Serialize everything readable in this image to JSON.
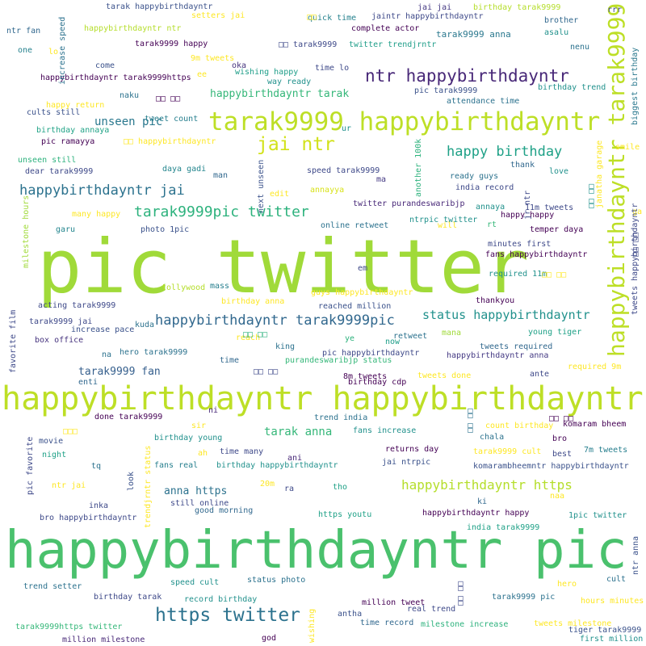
{
  "words": [
    {
      "text": "pic twitter",
      "color": "#a0da39"
    },
    {
      "text": "happybirthdayntr pic",
      "color": "#4ac16d"
    },
    {
      "text": "happybirthdayntr happybirthdayntr",
      "color": "#bddf26"
    },
    {
      "text": "tarak9999 happybirthdayntr",
      "color": "#bddf26"
    },
    {
      "text": "happybirthdayntr tarak9999",
      "color": "#bddf26"
    },
    {
      "text": "ntr happybirthdayntr",
      "color": "#482878"
    },
    {
      "text": "jai ntr",
      "color": "#d2e21b"
    },
    {
      "text": "happy birthday",
      "color": "#1fa187"
    },
    {
      "text": "happybirthdayntr jai",
      "color": "#2c728e"
    },
    {
      "text": "tarak9999pic twitter",
      "color": "#2db27d"
    },
    {
      "text": "happybirthdayntr tarak9999pic",
      "color": "#31688e"
    },
    {
      "text": "status happybirthdayntr",
      "color": "#21918c"
    },
    {
      "text": "https twitter",
      "color": "#2c728e"
    },
    {
      "text": "happybirthdayntr https",
      "color": "#b5de2b"
    },
    {
      "text": "happybirthdayntr tarak",
      "color": "#35b779"
    },
    {
      "text": "unseen pic",
      "color": "#2a788e"
    },
    {
      "text": "tarak anna",
      "color": "#35b779"
    },
    {
      "text": "tarak9999 fan",
      "color": "#355f8d"
    },
    {
      "text": "anna https",
      "color": "#2c728e"
    },
    {
      "text": "tarak9999 anna",
      "color": "#2a788e"
    },
    {
      "text": "tarak happybirthdayntr",
      "color": "#3b528b"
    },
    {
      "text": "birthday tarak9999",
      "color": "#b5de2b"
    },
    {
      "text": "jaintr happybirthdayntr",
      "color": "#3e4989"
    },
    {
      "text": "quick time",
      "color": "#26828e"
    },
    {
      "text": "setters jai",
      "color": "#fde725"
    },
    {
      "text": "jai jai",
      "color": "#443983"
    },
    {
      "text": "rrr",
      "color": "#3e4989"
    },
    {
      "text": "brother",
      "color": "#31688e"
    },
    {
      "text": "asalu",
      "color": "#21918c"
    },
    {
      "text": "complete actor",
      "color": "#440154"
    },
    {
      "text": "twitter trendjrntr",
      "color": "#1f9e89"
    },
    {
      "text": "ntr fan",
      "color": "#31688e"
    },
    {
      "text": "one",
      "color": "#26828e"
    },
    {
      "text": "lo",
      "color": "#fde725"
    },
    {
      "text": "happybirthdayntr ntr",
      "color": "#b5de2b"
    },
    {
      "text": "tarak9999 happy",
      "color": "#440154"
    },
    {
      "text": "9m tweets",
      "color": "#fde725"
    },
    {
      "text": "nenu",
      "color": "#2c728e"
    },
    {
      "text": "come",
      "color": "#3b528b"
    },
    {
      "text": "oka",
      "color": "#46337e"
    },
    {
      "text": "wishing happy",
      "color": "#1f9e89"
    },
    {
      "text": "time lo",
      "color": "#3e4989"
    },
    {
      "text": "happybirthdayntr tarak9999https",
      "color": "#440154"
    },
    {
      "text": "ee",
      "color": "#fde725"
    },
    {
      "text": "way ready",
      "color": "#21918c"
    },
    {
      "text": "pic tarak9999",
      "color": "#3b528b"
    },
    {
      "text": "birthday trend",
      "color": "#21918c"
    },
    {
      "text": "naku",
      "color": "#2c728e"
    },
    {
      "text": "happy return",
      "color": "#fde725"
    },
    {
      "text": "attendance time",
      "color": "#2c728e"
    },
    {
      "text": "cults still",
      "color": "#3b528b"
    },
    {
      "text": "tweet count",
      "color": "#277f8e"
    },
    {
      "text": "birthday annaya",
      "color": "#20a386"
    },
    {
      "text": "pic ramayya",
      "color": "#440154"
    },
    {
      "text": "ur",
      "color": "#21918c"
    },
    {
      "text": "smile",
      "color": "#fde725"
    },
    {
      "text": "unseen still",
      "color": "#2db27d"
    },
    {
      "text": "daya gadi",
      "color": "#24868e"
    },
    {
      "text": "speed tarak9999",
      "color": "#3e4989"
    },
    {
      "text": "thank",
      "color": "#31688e"
    },
    {
      "text": "dear tarak9999",
      "color": "#3e4989"
    },
    {
      "text": "man",
      "color": "#31688e"
    },
    {
      "text": "love",
      "color": "#21918c"
    },
    {
      "text": "ready guys",
      "color": "#2c728e"
    },
    {
      "text": "edit",
      "color": "#fde725"
    },
    {
      "text": "annayya",
      "color": "#d8e219"
    },
    {
      "text": "india record",
      "color": "#3e4989"
    },
    {
      "text": "ma",
      "color": "#443983"
    },
    {
      "text": "twitter purandeswaribjp",
      "color": "#482878"
    },
    {
      "text": "11m tweets",
      "color": "#3e4989"
    },
    {
      "text": "many happy",
      "color": "#fde725"
    },
    {
      "text": "annaya",
      "color": "#21918c"
    },
    {
      "text": "happy happy",
      "color": "#440154"
    },
    {
      "text": "ga",
      "color": "#fde725"
    },
    {
      "text": "garu",
      "color": "#24868e"
    },
    {
      "text": "photo 1pic",
      "color": "#3b528b"
    },
    {
      "text": "online retweet",
      "color": "#2c728e"
    },
    {
      "text": "will",
      "color": "#fde725"
    },
    {
      "text": "ntrpic twitter",
      "color": "#21918c"
    },
    {
      "text": "rt",
      "color": "#35b779"
    },
    {
      "text": "temper daya",
      "color": "#440154"
    },
    {
      "text": "minutes first",
      "color": "#3e4989"
    },
    {
      "text": "fans happybirthdayntr",
      "color": "#440154"
    },
    {
      "text": "em",
      "color": "#3e4989"
    },
    {
      "text": "required 11m",
      "color": "#21918c"
    },
    {
      "text": "tollywood",
      "color": "#b5de2b"
    },
    {
      "text": "mass",
      "color": "#277f8e"
    },
    {
      "text": "guys happybirthdayntr",
      "color": "#fde725"
    },
    {
      "text": "thankyou",
      "color": "#440154"
    },
    {
      "text": "acting tarak9999",
      "color": "#3e4989"
    },
    {
      "text": "birthday anna",
      "color": "#fde725"
    },
    {
      "text": "reached million",
      "color": "#3b528b"
    },
    {
      "text": "tarak9999 jai",
      "color": "#3e4989"
    },
    {
      "text": "increase pace",
      "color": "#3b528b"
    },
    {
      "text": "kuda",
      "color": "#2c728e"
    },
    {
      "text": "box office",
      "color": "#46337e"
    },
    {
      "text": "reach",
      "color": "#fde725"
    },
    {
      "text": "ye",
      "color": "#2db27d"
    },
    {
      "text": "retweet",
      "color": "#2c728e"
    },
    {
      "text": "mana",
      "color": "#a0da39"
    },
    {
      "text": "young tiger",
      "color": "#1fa187"
    },
    {
      "text": "king",
      "color": "#2c728e"
    },
    {
      "text": "now",
      "color": "#1f9e89"
    },
    {
      "text": "tweets required",
      "color": "#31688e"
    },
    {
      "text": "na",
      "color": "#2c728e"
    },
    {
      "text": "hero tarak9999",
      "color": "#2c728e"
    },
    {
      "text": "pic happybirthdayntr",
      "color": "#3e4989"
    },
    {
      "text": "happybirthdayntr anna",
      "color": "#443983"
    },
    {
      "text": "time",
      "color": "#31688e"
    },
    {
      "text": "purandeswaribjp status",
      "color": "#35b779"
    },
    {
      "text": "required 9m",
      "color": "#fde725"
    },
    {
      "text": "8m tweets",
      "color": "#440154"
    },
    {
      "text": "tweets done",
      "color": "#fde725"
    },
    {
      "text": "ante",
      "color": "#3e4989"
    },
    {
      "text": "enti",
      "color": "#31688e"
    },
    {
      "text": "birthday cdp",
      "color": "#440154"
    },
    {
      "text": "done tarak9999",
      "color": "#440154"
    },
    {
      "text": "ni",
      "color": "#482878"
    },
    {
      "text": "trend india",
      "color": "#2c728e"
    },
    {
      "text": "komaram bheem",
      "color": "#440154"
    },
    {
      "text": "sir",
      "color": "#fde725"
    },
    {
      "text": "fans increase",
      "color": "#21918c"
    },
    {
      "text": "count birthday",
      "color": "#fde725"
    },
    {
      "text": "chala",
      "color": "#2c728e"
    },
    {
      "text": "bro",
      "color": "#440154"
    },
    {
      "text": "movie",
      "color": "#3b528b"
    },
    {
      "text": "birthday young",
      "color": "#21918c"
    },
    {
      "text": "ah",
      "color": "#fde725"
    },
    {
      "text": "time many",
      "color": "#3e4989"
    },
    {
      "text": "returns day",
      "color": "#440154"
    },
    {
      "text": "tarak9999 cult",
      "color": "#fde725"
    },
    {
      "text": "best",
      "color": "#3e4989"
    },
    {
      "text": "7m tweets",
      "color": "#277f8e"
    },
    {
      "text": "night",
      "color": "#1fa187"
    },
    {
      "text": "ani",
      "color": "#482878"
    },
    {
      "text": "jai ntrpic",
      "color": "#3b528b"
    },
    {
      "text": "tq",
      "color": "#2c728e"
    },
    {
      "text": "fans real",
      "color": "#277f8e"
    },
    {
      "text": "birthday happybirthdayntr",
      "color": "#21918c"
    },
    {
      "text": "komarambheemntr happybirthdayntr",
      "color": "#3b528b"
    },
    {
      "text": "ntr jai",
      "color": "#fde725"
    },
    {
      "text": "20m",
      "color": "#fde725"
    },
    {
      "text": "ra",
      "color": "#3e4989"
    },
    {
      "text": "tho",
      "color": "#1fa187"
    },
    {
      "text": "naa",
      "color": "#fde725"
    },
    {
      "text": "inka",
      "color": "#3e4989"
    },
    {
      "text": "still online",
      "color": "#3e4989"
    },
    {
      "text": "good morning",
      "color": "#31688e"
    },
    {
      "text": "ki",
      "color": "#31688e"
    },
    {
      "text": "1pic twitter",
      "color": "#21918c"
    },
    {
      "text": "happybirthdayntr happy",
      "color": "#440154"
    },
    {
      "text": "bro happybirthdayntr",
      "color": "#3e4989"
    },
    {
      "text": "https youtu",
      "color": "#1fa187"
    },
    {
      "text": "india tarak9999",
      "color": "#1fa187"
    },
    {
      "text": "trend setter",
      "color": "#2c728e"
    },
    {
      "text": "speed cult",
      "color": "#21918c"
    },
    {
      "text": "status photo",
      "color": "#2c728e"
    },
    {
      "text": "hero",
      "color": "#fde725"
    },
    {
      "text": "cult",
      "color": "#2c728e"
    },
    {
      "text": "birthday tarak",
      "color": "#3e4989"
    },
    {
      "text": "record birthday",
      "color": "#21918c"
    },
    {
      "text": "million tweet",
      "color": "#440154"
    },
    {
      "text": "real trend",
      "color": "#3e4989"
    },
    {
      "text": "tarak9999 pic",
      "color": "#2c728e"
    },
    {
      "text": "hours minutes",
      "color": "#fde725"
    },
    {
      "text": "antha",
      "color": "#3b528b"
    },
    {
      "text": "tarak9999https twitter",
      "color": "#35b779"
    },
    {
      "text": "time record",
      "color": "#31688e"
    },
    {
      "text": "milestone increase",
      "color": "#2db27d"
    },
    {
      "text": "tweets milestone",
      "color": "#fde725"
    },
    {
      "text": "tiger tarak9999",
      "color": "#3b528b"
    },
    {
      "text": "million milestone",
      "color": "#482878"
    },
    {
      "text": "god",
      "color": "#440154"
    },
    {
      "text": "first million",
      "color": "#21918c"
    },
    {
      "text": "increase speed",
      "color": "#2c728e"
    },
    {
      "text": "biggest birthday",
      "color": "#2a788e"
    },
    {
      "text": "tweets happybirthdayntr",
      "color": "#3e4989"
    },
    {
      "text": "janatha garage",
      "color": "#fde725"
    },
    {
      "text": "jr ntr",
      "color": "#3e4989"
    },
    {
      "text": "another 100k",
      "color": "#2db27d"
    },
    {
      "text": "next unseen",
      "color": "#3b528b"
    },
    {
      "text": "milestone hours",
      "color": "#a0da39"
    },
    {
      "text": "favorite film",
      "color": "#3e4989"
    },
    {
      "text": "pic favorite",
      "color": "#3e4989"
    },
    {
      "text": "look",
      "color": "#3b528b"
    },
    {
      "text": "trendjrntr status",
      "color": "#fde725"
    },
    {
      "text": "ntr anna",
      "color": "#3b528b"
    },
    {
      "text": "wishing",
      "color": "#fde725"
    },
    {
      "text": "□□ tarak9999",
      "color": "#3e4989"
    },
    {
      "text": "□□ □□",
      "color": "#440154"
    },
    {
      "text": "□□ happybirthdayntr",
      "color": "#fde725"
    },
    {
      "text": "□□ □□",
      "color": "#2db27d"
    },
    {
      "text": "□□ □□",
      "color": "#3e4989"
    },
    {
      "text": "□□ □□",
      "color": "#fde725"
    },
    {
      "text": "□□",
      "color": "#fde725"
    },
    {
      "text": "□□ □□",
      "color": "#2c728e"
    },
    {
      "text": "□□ □□",
      "color": "#440154"
    },
    {
      "text": "□□ □□",
      "color": "#21918c"
    },
    {
      "text": "□□□",
      "color": "#fde725"
    },
    {
      "text": "□□ □□",
      "color": "#3e4989"
    },
    {
      "text": "□□ □□",
      "color": "#3e4989"
    }
  ]
}
